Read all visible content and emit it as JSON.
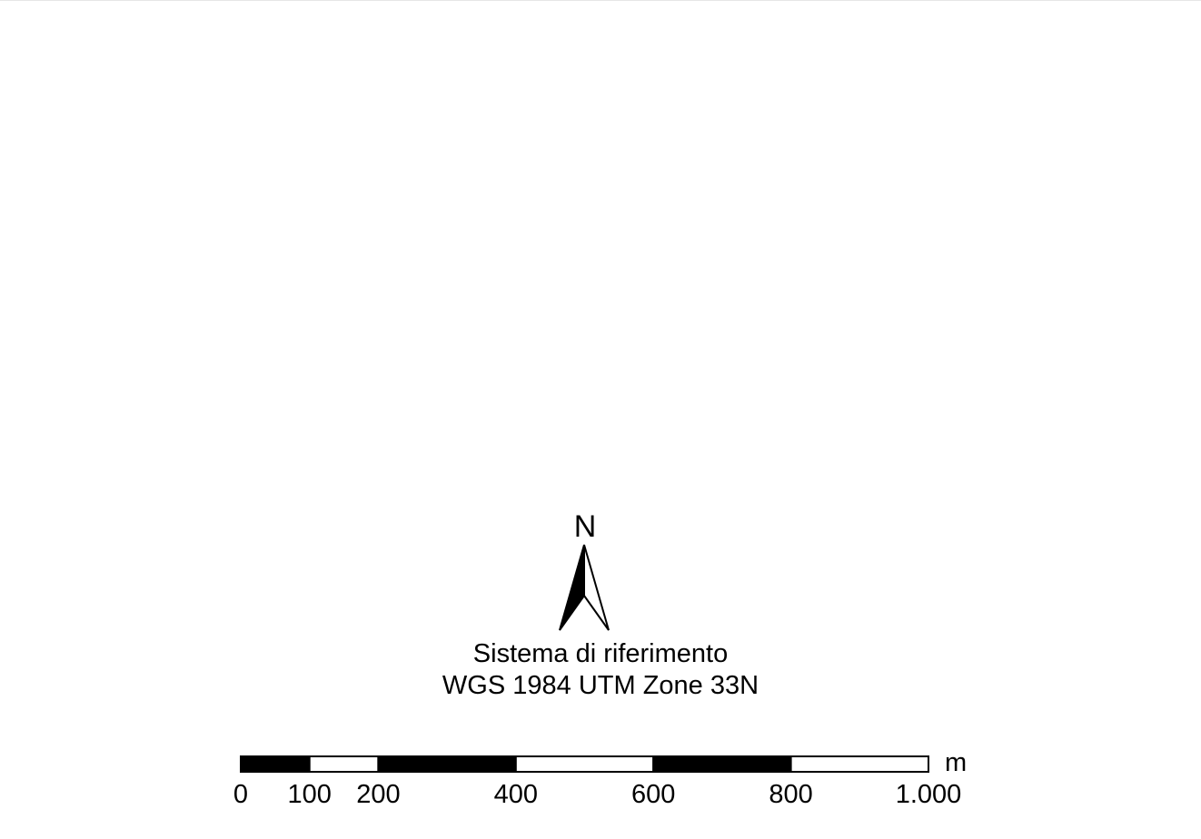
{
  "north_arrow": {
    "letter": "N",
    "icon": "north-arrow-icon"
  },
  "reference_system": {
    "line1": "Sistema di riferimento",
    "line2": "WGS 1984 UTM Zone 33N"
  },
  "scale_bar": {
    "unit": "m",
    "max": 1000,
    "segments": [
      {
        "from": 0,
        "to": 100,
        "fill": "black"
      },
      {
        "from": 100,
        "to": 200,
        "fill": "white"
      },
      {
        "from": 200,
        "to": 400,
        "fill": "black"
      },
      {
        "from": 400,
        "to": 600,
        "fill": "white"
      },
      {
        "from": 600,
        "to": 800,
        "fill": "black"
      },
      {
        "from": 800,
        "to": 1000,
        "fill": "white"
      }
    ],
    "labels": [
      {
        "value": 0,
        "text": "0"
      },
      {
        "value": 100,
        "text": "100"
      },
      {
        "value": 200,
        "text": "200"
      },
      {
        "value": 400,
        "text": "400"
      },
      {
        "value": 600,
        "text": "600"
      },
      {
        "value": 800,
        "text": "800"
      },
      {
        "value": 1000,
        "text": "1.000"
      }
    ]
  },
  "colors": {
    "ink": "#000000",
    "paper": "#ffffff"
  }
}
